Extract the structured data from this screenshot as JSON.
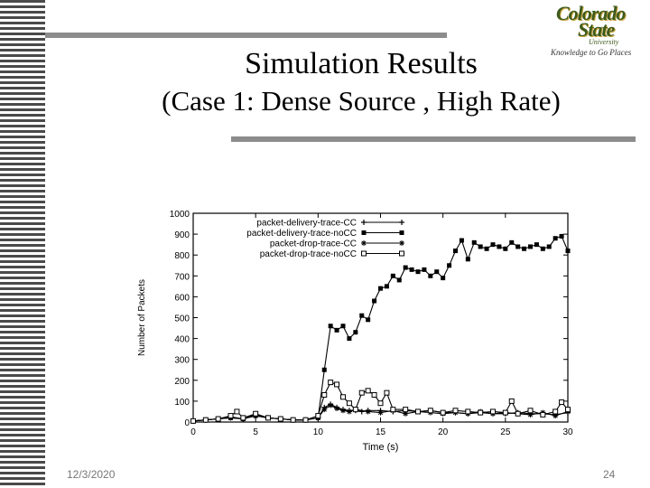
{
  "slide": {
    "title": "Simulation Results",
    "subtitle": "(Case 1: Dense Source , High Rate)",
    "date": "12/3/2020",
    "page_number": "24",
    "logo": {
      "line1": "Colorado",
      "line2": "State",
      "university": "University",
      "tagline": "Knowledge to Go Places"
    }
  },
  "colors": {
    "rule": "#8c8c8c",
    "logo_green": "#3d5a1c",
    "logo_gold": "#c8a23c",
    "plot": "#000000"
  },
  "chart_data": {
    "type": "line",
    "title": "",
    "xlabel": "Time (s)",
    "ylabel": "Number of Packets",
    "xlim": [
      0,
      30
    ],
    "ylim": [
      0,
      1000
    ],
    "xticks": [
      0,
      5,
      10,
      15,
      20,
      25,
      30
    ],
    "yticks": [
      0,
      100,
      200,
      300,
      400,
      500,
      600,
      700,
      800,
      900,
      1000
    ],
    "legend_position": "top-left",
    "series": [
      {
        "name": "packet-delivery-trace-CC",
        "marker": "plus",
        "x": [
          0,
          1,
          2,
          3,
          4,
          5,
          6,
          7,
          8,
          9,
          10,
          10.5,
          11,
          11.5,
          12,
          12.5,
          13,
          13.5,
          14,
          15,
          16,
          17,
          18,
          19,
          20,
          21,
          22,
          23,
          24,
          25,
          26,
          27,
          28,
          29,
          30
        ],
        "values": [
          5,
          10,
          15,
          20,
          15,
          30,
          20,
          15,
          10,
          10,
          20,
          70,
          85,
          70,
          60,
          55,
          55,
          50,
          55,
          55,
          50,
          55,
          50,
          55,
          45,
          45,
          40,
          45,
          40,
          40,
          45,
          40,
          40,
          35,
          45
        ]
      },
      {
        "name": "packet-delivery-trace-noCC",
        "marker": "filled-square",
        "x": [
          0,
          1,
          2,
          3,
          4,
          5,
          6,
          7,
          8,
          9,
          10,
          10.5,
          11,
          11.5,
          12,
          12.5,
          13,
          13.5,
          14,
          14.5,
          15,
          15.5,
          16,
          16.5,
          17,
          17.5,
          18,
          18.5,
          19,
          19.5,
          20,
          20.5,
          21,
          21.5,
          22,
          22.5,
          23,
          23.5,
          24,
          24.5,
          25,
          25.5,
          26,
          26.5,
          27,
          27.5,
          28,
          28.5,
          29,
          29.5,
          30
        ],
        "values": [
          5,
          10,
          15,
          20,
          15,
          30,
          20,
          15,
          10,
          10,
          20,
          250,
          460,
          440,
          460,
          400,
          430,
          510,
          490,
          580,
          640,
          650,
          700,
          680,
          740,
          730,
          720,
          730,
          700,
          720,
          690,
          750,
          820,
          870,
          780,
          860,
          840,
          830,
          850,
          840,
          830,
          860,
          840,
          830,
          840,
          850,
          830,
          840,
          880,
          890,
          820
        ]
      },
      {
        "name": "packet-drop-trace-CC",
        "marker": "star",
        "x": [
          0,
          1,
          2,
          3,
          4,
          5,
          6,
          7,
          8,
          9,
          10,
          10.5,
          11,
          11.5,
          12,
          12.5,
          13,
          14,
          15,
          16,
          17,
          18,
          19,
          20,
          21,
          22,
          23,
          24,
          25,
          26,
          27,
          28,
          29,
          30
        ],
        "values": [
          5,
          10,
          15,
          25,
          15,
          35,
          20,
          15,
          10,
          10,
          20,
          60,
          80,
          65,
          55,
          50,
          60,
          50,
          45,
          55,
          40,
          50,
          45,
          40,
          45,
          40,
          50,
          40,
          45,
          40,
          35,
          45,
          30,
          50
        ]
      },
      {
        "name": "packet-drop-trace-noCC",
        "marker": "open-square",
        "x": [
          0,
          1,
          2,
          3,
          3.5,
          4,
          5,
          6,
          7,
          8,
          9,
          10,
          10.5,
          11,
          11.5,
          12,
          12.5,
          13,
          13.5,
          14,
          14.5,
          15,
          15.5,
          16,
          17,
          18,
          19,
          20,
          21,
          22,
          23,
          24,
          25,
          25.5,
          26,
          27,
          28,
          29,
          29.5,
          30
        ],
        "values": [
          5,
          10,
          15,
          30,
          50,
          20,
          40,
          20,
          15,
          10,
          10,
          30,
          130,
          190,
          180,
          120,
          90,
          60,
          140,
          150,
          130,
          90,
          140,
          60,
          60,
          50,
          55,
          45,
          55,
          50,
          45,
          50,
          45,
          100,
          40,
          55,
          35,
          50,
          95,
          60
        ]
      }
    ]
  }
}
